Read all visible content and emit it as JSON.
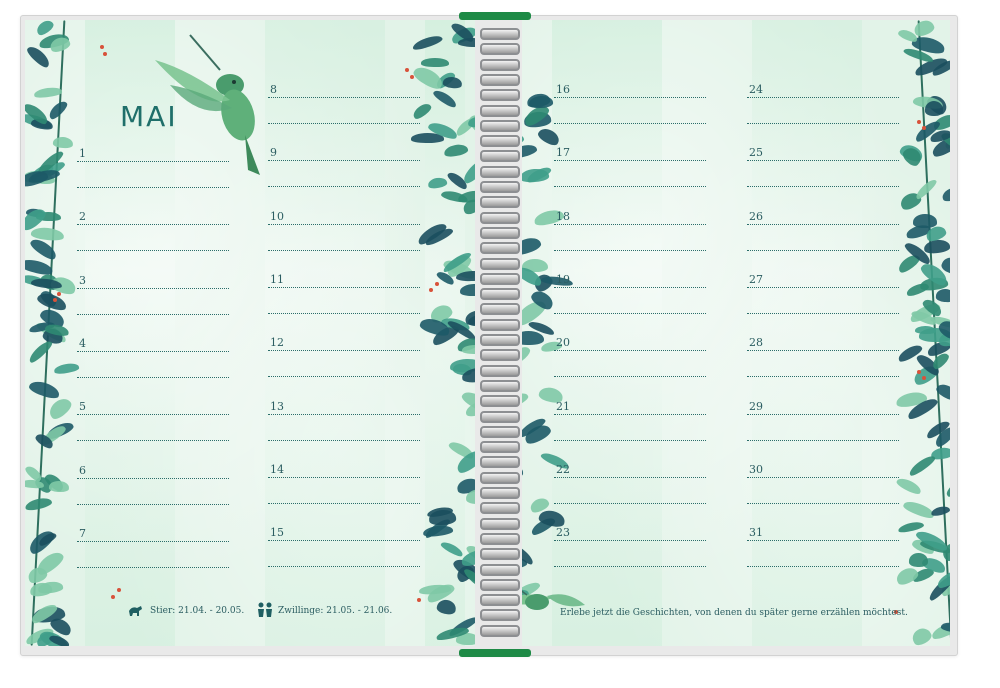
{
  "planner": {
    "month": "MAI",
    "days_left_col1": [
      "1",
      "2",
      "3",
      "4",
      "5",
      "6",
      "7"
    ],
    "days_left_col2": [
      "8",
      "9",
      "10",
      "11",
      "12",
      "13",
      "14",
      "15"
    ],
    "days_right_col1": [
      "16",
      "17",
      "18",
      "19",
      "20",
      "21",
      "22",
      "23"
    ],
    "days_right_col2": [
      "24",
      "25",
      "26",
      "27",
      "28",
      "29",
      "30",
      "31"
    ],
    "zodiac_taurus": "Stier: 21.04. - 20.05.",
    "zodiac_gemini": "Zwillinge: 21.05. - 21.06.",
    "quote": "Erlebe jetzt die Geschichten, von denen du später gerne erzählen möchtest."
  },
  "colors": {
    "page": "#e2f3e8",
    "ink": "#2b5d61",
    "leaf_dark": "#1d5a67",
    "leaf_mid": "#2f8a72",
    "leaf_light": "#7fc9a6",
    "berry": "#d8523a",
    "band": "#1e8a46"
  },
  "icons": [
    "taurus-icon",
    "gemini-icon",
    "hummingbird-illustration",
    "fern-leaf-illustration"
  ]
}
